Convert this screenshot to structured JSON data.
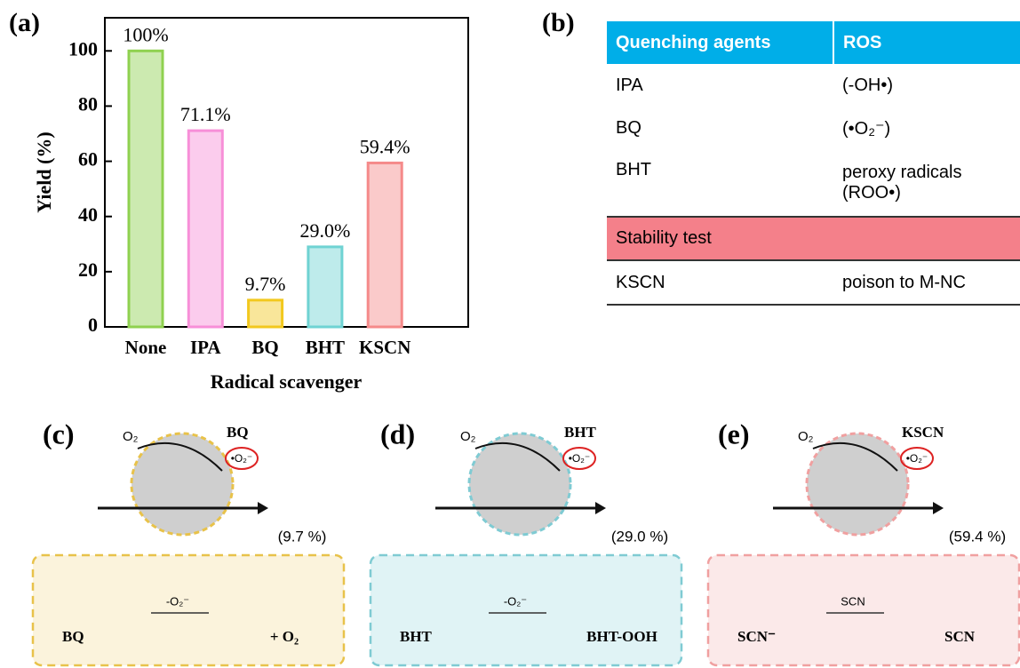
{
  "chart_data": {
    "type": "bar",
    "panel_label": "(a)",
    "y_label": "Yield (%)",
    "x_label": "Radical scavenger",
    "categories": [
      "None",
      "IPA",
      "BQ",
      "BHT",
      "KSCN"
    ],
    "values": [
      100,
      71.1,
      9.7,
      29.0,
      59.4
    ],
    "value_labels": [
      "100%",
      "71.1%",
      "9.7%",
      "29.0%",
      "59.4%"
    ],
    "colors": [
      "#8fd14f",
      "#f78fd8",
      "#f2c81e",
      "#6fd3d3",
      "#f58a8a"
    ],
    "ylim": [
      0,
      112
    ],
    "yticks": [
      0,
      20,
      40,
      60,
      80,
      100
    ]
  },
  "table": {
    "panel_label": "(b)",
    "header": [
      "Quenching agents",
      "ROS"
    ],
    "rows": [
      [
        "IPA",
        "(-OH•)"
      ],
      [
        "BQ",
        "(•O₂⁻)"
      ],
      [
        "BHT",
        "peroxy radicals (ROO•)"
      ]
    ],
    "section": "Stability test",
    "section_rows": [
      [
        "KSCN",
        "poison to M-NC"
      ]
    ]
  },
  "panels": [
    {
      "label": "(c)",
      "oxidant": "O₂",
      "reagent": "BQ",
      "species": "•O₂⁻",
      "yield": "(9.7 %)",
      "box_left": "BQ",
      "box_arrow": "-O₂⁻",
      "box_right": "+ O₂"
    },
    {
      "label": "(d)",
      "oxidant": "O₂",
      "reagent": "BHT",
      "species": "•O₂⁻",
      "yield": "(29.0 %)",
      "box_left": "BHT",
      "box_arrow": "-O₂⁻",
      "box_right": "BHT-OOH"
    },
    {
      "label": "(e)",
      "oxidant": "O₂",
      "reagent": "KSCN",
      "species": "•O₂⁻",
      "yield": "(59.4 %)",
      "box_left": "SCN⁻",
      "box_arrow": "SCN",
      "box_right": "SCN"
    }
  ]
}
